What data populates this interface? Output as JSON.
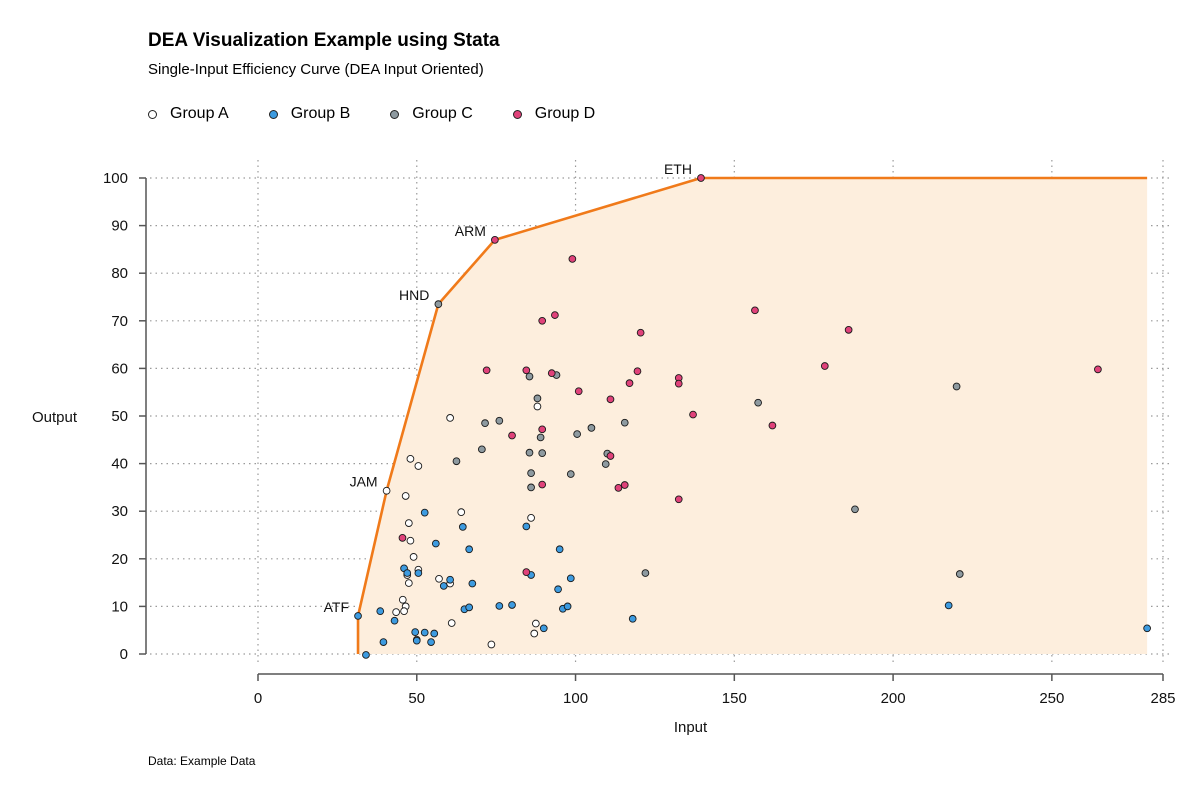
{
  "title": "DEA Visualization Example using Stata",
  "subtitle": "Single-Input Efficiency Curve (DEA Input Oriented)",
  "caption": "Data: Example Data",
  "colors": {
    "group_a": "#ffffff",
    "group_b": "#3d9be0",
    "group_c": "#8e9aa0",
    "group_d": "#e0427a",
    "frontier": "#f07a1a",
    "frontier_fill": "#fdeedd"
  },
  "legend": [
    {
      "key": "A",
      "label": "Group A",
      "color": "#ffffff"
    },
    {
      "key": "B",
      "label": "Group B",
      "color": "#3d9be0"
    },
    {
      "key": "C",
      "label": "Group C",
      "color": "#8e9aa0"
    },
    {
      "key": "D",
      "label": "Group D",
      "color": "#e0427a"
    }
  ],
  "chart_data": {
    "type": "scatter",
    "xlabel": "Input",
    "ylabel": "Output",
    "xlim": [
      0,
      285
    ],
    "ylim": [
      0,
      100
    ],
    "xticks": [
      0,
      50,
      100,
      150,
      200,
      250,
      285
    ],
    "yticks": [
      0,
      10,
      20,
      30,
      40,
      50,
      60,
      70,
      80,
      90,
      100
    ],
    "grid": true,
    "legend_position": "top-left",
    "frontier": {
      "points": [
        [
          31.5,
          0
        ],
        [
          31.5,
          8
        ],
        [
          40.5,
          34.3
        ],
        [
          56.8,
          73.5
        ],
        [
          74.6,
          87
        ],
        [
          139.5,
          100
        ],
        [
          280,
          100
        ]
      ],
      "labels": [
        {
          "text": "ATF",
          "x": 31.5,
          "y": 8
        },
        {
          "text": "JAM",
          "x": 40.5,
          "y": 34.3
        },
        {
          "text": "HND",
          "x": 56.8,
          "y": 73.5
        },
        {
          "text": "ARM",
          "x": 74.6,
          "y": 87
        },
        {
          "text": "ETH",
          "x": 139.5,
          "y": 100
        }
      ]
    },
    "series": [
      {
        "name": "Group A",
        "group": "A",
        "points": [
          [
            40.5,
            34.3
          ],
          [
            48,
            41
          ],
          [
            50.5,
            39.5
          ],
          [
            46.5,
            33.2
          ],
          [
            47.5,
            27.5
          ],
          [
            48,
            23.8
          ],
          [
            49,
            20.4
          ],
          [
            50.5,
            17.7
          ],
          [
            47,
            16.6
          ],
          [
            47.5,
            14.9
          ],
          [
            45.6,
            11.4
          ],
          [
            46.5,
            10
          ],
          [
            43.5,
            8.8
          ],
          [
            46,
            9
          ],
          [
            50,
            3
          ],
          [
            60.5,
            49.6
          ],
          [
            57,
            15.8
          ],
          [
            60.5,
            14.8
          ],
          [
            61,
            6.5
          ],
          [
            64,
            29.8
          ],
          [
            73.5,
            2
          ],
          [
            86,
            28.6
          ],
          [
            88,
            52
          ],
          [
            87.5,
            6.4
          ],
          [
            87,
            4.3
          ]
        ]
      },
      {
        "name": "Group B",
        "group": "B",
        "points": [
          [
            31.5,
            8
          ],
          [
            34,
            -0.2
          ],
          [
            38.5,
            9
          ],
          [
            39.5,
            2.5
          ],
          [
            43,
            7
          ],
          [
            46,
            18
          ],
          [
            47,
            17
          ],
          [
            50.5,
            17
          ],
          [
            49.5,
            4.6
          ],
          [
            50,
            2.8
          ],
          [
            52.5,
            4.5
          ],
          [
            54.5,
            2.5
          ],
          [
            55.5,
            4.3
          ],
          [
            56,
            23.2
          ],
          [
            52.5,
            29.7
          ],
          [
            58.5,
            14.3
          ],
          [
            60.5,
            15.6
          ],
          [
            64.5,
            26.7
          ],
          [
            65,
            9.4
          ],
          [
            66.5,
            9.8
          ],
          [
            66.5,
            22
          ],
          [
            67.5,
            14.8
          ],
          [
            76,
            10.1
          ],
          [
            80,
            10.3
          ],
          [
            84.5,
            26.8
          ],
          [
            86,
            16.6
          ],
          [
            90,
            5.4
          ],
          [
            94.5,
            13.6
          ],
          [
            95,
            22
          ],
          [
            96,
            9.5
          ],
          [
            97.5,
            10
          ],
          [
            98.5,
            15.9
          ],
          [
            118,
            7.4
          ],
          [
            217.5,
            10.2
          ],
          [
            280,
            5.4
          ]
        ]
      },
      {
        "name": "Group C",
        "group": "C",
        "points": [
          [
            56.8,
            73.5
          ],
          [
            62.5,
            40.5
          ],
          [
            70.5,
            43
          ],
          [
            71.5,
            48.5
          ],
          [
            76,
            49
          ],
          [
            85.5,
            58.3
          ],
          [
            85.5,
            42.3
          ],
          [
            86,
            38
          ],
          [
            86,
            35
          ],
          [
            88,
            53.7
          ],
          [
            89,
            45.5
          ],
          [
            89.5,
            42.2
          ],
          [
            94,
            58.6
          ],
          [
            98.5,
            37.8
          ],
          [
            100.5,
            46.2
          ],
          [
            105,
            47.5
          ],
          [
            109.5,
            39.9
          ],
          [
            110,
            42.1
          ],
          [
            115.5,
            48.6
          ],
          [
            122,
            17
          ],
          [
            157.5,
            52.8
          ],
          [
            188,
            30.4
          ],
          [
            220,
            56.2
          ],
          [
            221,
            16.8
          ]
        ]
      },
      {
        "name": "Group D",
        "group": "D",
        "points": [
          [
            74.6,
            87
          ],
          [
            139.5,
            100
          ],
          [
            72,
            59.6
          ],
          [
            80,
            45.9
          ],
          [
            84.5,
            59.6
          ],
          [
            84.5,
            17.2
          ],
          [
            89.5,
            70
          ],
          [
            89.5,
            35.6
          ],
          [
            89.5,
            47.2
          ],
          [
            92.5,
            59
          ],
          [
            93.5,
            71.2
          ],
          [
            99,
            83
          ],
          [
            101,
            55.2
          ],
          [
            111,
            53.5
          ],
          [
            111,
            41.6
          ],
          [
            113.5,
            34.9
          ],
          [
            115.5,
            35.5
          ],
          [
            117,
            56.9
          ],
          [
            119.5,
            59.4
          ],
          [
            120.5,
            67.5
          ],
          [
            132.5,
            58
          ],
          [
            132.5,
            56.8
          ],
          [
            132.5,
            32.5
          ],
          [
            137,
            50.3
          ],
          [
            156.5,
            72.2
          ],
          [
            162,
            48
          ],
          [
            178.5,
            60.5
          ],
          [
            186,
            68.1
          ],
          [
            264.5,
            59.8
          ],
          [
            45.5,
            24.4
          ]
        ]
      }
    ]
  }
}
